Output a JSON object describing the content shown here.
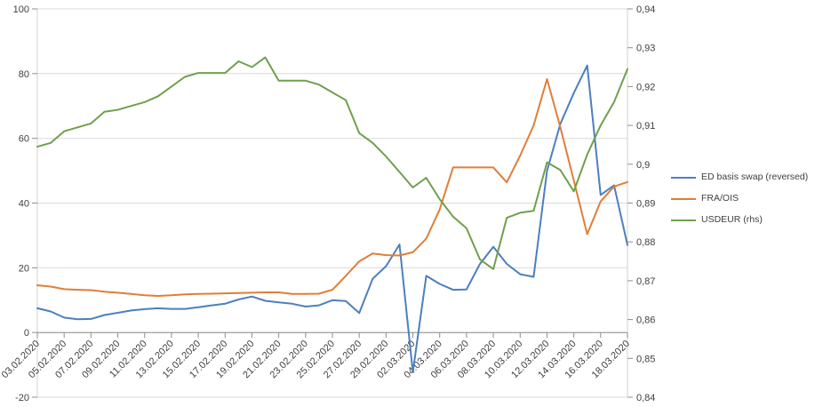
{
  "chart_data": {
    "type": "line",
    "title": "",
    "grid": true,
    "legend_position": "right",
    "x_tick_every": 2,
    "x": [
      "03.02.2020",
      "04.02.2020",
      "05.02.2020",
      "06.02.2020",
      "07.02.2020",
      "08.02.2020",
      "09.02.2020",
      "10.02.2020",
      "11.02.2020",
      "12.02.2020",
      "13.02.2020",
      "14.02.2020",
      "15.02.2020",
      "16.02.2020",
      "17.02.2020",
      "18.02.2020",
      "19.02.2020",
      "20.02.2020",
      "21.02.2020",
      "22.02.2020",
      "23.02.2020",
      "24.02.2020",
      "25.02.2020",
      "26.02.2020",
      "27.02.2020",
      "28.02.2020",
      "29.02.2020",
      "01.03.2020",
      "02.03.2020",
      "03.03.2020",
      "04.03.2020",
      "05.03.2020",
      "06.03.2020",
      "07.03.2020",
      "08.03.2020",
      "09.03.2020",
      "10.03.2020",
      "11.03.2020",
      "12.03.2020",
      "13.03.2020",
      "14.03.2020",
      "15.03.2020",
      "16.03.2020",
      "17.03.2020",
      "18.03.2020"
    ],
    "left_axis": {
      "min": -20,
      "max": 100,
      "step": 20,
      "tick_labels": [
        "100",
        "80",
        "60",
        "40",
        "20",
        "0",
        "-20"
      ]
    },
    "right_axis": {
      "min": 0.84,
      "max": 0.94,
      "step": 0.01,
      "tick_labels": [
        "0,94",
        "0,93",
        "0,92",
        "0,91",
        "0,9",
        "0,89",
        "0,88",
        "0,87",
        "0,86",
        "0,85",
        "0,84"
      ]
    },
    "series": [
      {
        "name": "ED basis swap (reversed)",
        "axis": "left",
        "color": "#4C7FBF",
        "values": [
          7.5,
          6.5,
          4.6,
          4.1,
          4.2,
          5.4,
          6.1,
          6.8,
          7.2,
          7.5,
          7.3,
          7.3,
          7.8,
          8.4,
          8.9,
          10.2,
          11.1,
          9.8,
          9.3,
          8.9,
          8.0,
          8.4,
          10.0,
          9.7,
          6.0,
          16.6,
          20.5,
          27.2,
          -12.3,
          17.5,
          15.0,
          13.2,
          13.3,
          21.2,
          26.5,
          21.2,
          18.0,
          17.2,
          50.0,
          64.5,
          74.0,
          82.5,
          42.5,
          45.5,
          27.0
        ]
      },
      {
        "name": "FRA/OIS",
        "axis": "left",
        "color": "#E07E38",
        "values": [
          14.6,
          14.2,
          13.4,
          13.2,
          13.1,
          12.6,
          12.3,
          11.9,
          11.5,
          11.3,
          11.5,
          11.8,
          11.9,
          12.0,
          12.1,
          12.2,
          12.3,
          12.4,
          12.4,
          11.9,
          11.9,
          12.0,
          13.2,
          17.5,
          22.0,
          24.4,
          23.9,
          23.8,
          24.8,
          29.0,
          38.0,
          51.0,
          51.0,
          51.0,
          51.0,
          46.4,
          54.7,
          64.0,
          78.3,
          63.4,
          47.0,
          30.4,
          40.5,
          45.1,
          46.5
        ]
      },
      {
        "name": "USDEUR (rhs)",
        "axis": "right",
        "color": "#6FA04C",
        "values": [
          0.9045,
          0.9055,
          0.9085,
          0.9095,
          0.9105,
          0.9135,
          0.914,
          0.915,
          0.916,
          0.9175,
          0.92,
          0.9225,
          0.9235,
          0.9235,
          0.9235,
          0.9265,
          0.925,
          0.9275,
          0.9215,
          0.9215,
          0.9215,
          0.9205,
          0.9185,
          0.9165,
          0.908,
          0.9055,
          0.902,
          0.898,
          0.894,
          0.8965,
          0.891,
          0.8865,
          0.8835,
          0.8755,
          0.873,
          0.8862,
          0.8875,
          0.888,
          0.9005,
          0.8985,
          0.893,
          0.9025,
          0.91,
          0.916,
          0.9245
        ]
      }
    ],
    "colors": {
      "grid": "#D9D9D9",
      "frame": "#D2D2D2",
      "axis_line": "#8E8E8E",
      "tick": "#8E8E8E",
      "label_text": "#404040"
    }
  },
  "legend": {
    "items": [
      {
        "label": "ED basis swap (reversed)"
      },
      {
        "label": "FRA/OIS"
      },
      {
        "label": "USDEUR (rhs)"
      }
    ]
  }
}
